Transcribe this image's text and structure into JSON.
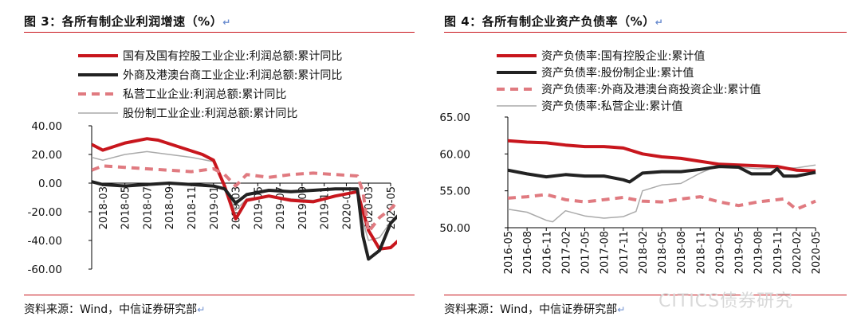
{
  "figures": [
    {
      "title": "图 3：各所有制企业利润增速（%）",
      "source": "资料来源：Wind，中信证券研究部",
      "return_mark": "↵"
    },
    {
      "title": "图 4：各所有制企业资产负债率（%）",
      "source": "资料来源：Wind，中信证券研究部",
      "return_mark": "↵"
    }
  ],
  "watermark": "CITICS债券研究",
  "colors": {
    "red": "#c8161d",
    "black": "#222222",
    "pink": "#e07a80",
    "gray": "#aaaaaa",
    "rule": "#c8161d"
  },
  "chart_data": [
    {
      "type": "line",
      "title": "",
      "xlabel": "",
      "ylabel": "",
      "ylim": [
        -60,
        40
      ],
      "yticks": [
        "40.00",
        "20.00",
        "0.00",
        "-20.00",
        "-40.00",
        "-60.00"
      ],
      "ytick_values": [
        40,
        20,
        0,
        -20,
        -40,
        -60
      ],
      "x_range": [
        0,
        27
      ],
      "xticks": [
        "2018-03",
        "2018-05",
        "2018-07",
        "2018-09",
        "2018-11",
        "2019-01",
        "2019-03",
        "2019-05",
        "2019-07",
        "2019-09",
        "2019-11",
        "2020-01",
        "2020-03",
        "2020-05"
      ],
      "xtick_values": [
        1,
        3,
        5,
        7,
        9,
        11,
        13,
        15,
        17,
        19,
        21,
        23,
        25,
        27
      ],
      "legend_position": "top",
      "series": [
        {
          "name": "国有及国有控股工业企业:利润总额:累计同比",
          "color": "#c8161d",
          "style": "solid-thick",
          "points": [
            [
              0,
              27
            ],
            [
              1,
              23
            ],
            [
              3,
              28
            ],
            [
              5,
              31
            ],
            [
              6,
              30
            ],
            [
              8,
              25
            ],
            [
              10,
              20
            ],
            [
              11,
              16
            ],
            [
              12,
              -2
            ],
            [
              13,
              -25
            ],
            [
              14,
              -12
            ],
            [
              16,
              -9
            ],
            [
              18,
              -12
            ],
            [
              20,
              -13
            ],
            [
              22,
              -9
            ],
            [
              24,
              -6
            ],
            [
              25,
              -33
            ],
            [
              26,
              -46
            ],
            [
              27,
              -45
            ],
            [
              28,
              -38
            ]
          ]
        },
        {
          "name": "外商及港澳台商工业企业:利润总额:累计同比",
          "color": "#222222",
          "style": "solid-thick",
          "points": [
            [
              0,
              1
            ],
            [
              1,
              -1
            ],
            [
              3,
              -2
            ],
            [
              5,
              -1
            ],
            [
              7,
              0
            ],
            [
              9,
              -1
            ],
            [
              11,
              -2
            ],
            [
              12,
              -4
            ],
            [
              13,
              -14
            ],
            [
              14,
              -8
            ],
            [
              16,
              -5
            ],
            [
              18,
              -6
            ],
            [
              20,
              -5
            ],
            [
              22,
              -4
            ],
            [
              24,
              -4
            ],
            [
              24.5,
              -37
            ],
            [
              25,
              -53
            ],
            [
              26,
              -47
            ],
            [
              27,
              -28
            ],
            [
              28,
              -20
            ]
          ]
        },
        {
          "name": "私营工业企业:利润总额:累计同比",
          "color": "#e07a80",
          "style": "dashed-thick",
          "points": [
            [
              0,
              9
            ],
            [
              1,
              12
            ],
            [
              3,
              11
            ],
            [
              5,
              10
            ],
            [
              7,
              9
            ],
            [
              9,
              8
            ],
            [
              11,
              10
            ],
            [
              12,
              6
            ],
            [
              13,
              -2
            ],
            [
              14,
              6
            ],
            [
              16,
              4
            ],
            [
              18,
              6
            ],
            [
              20,
              7
            ],
            [
              22,
              6
            ],
            [
              24,
              5
            ],
            [
              24.5,
              -6
            ],
            [
              25,
              -34
            ],
            [
              26,
              -24
            ],
            [
              27,
              -18
            ],
            [
              28,
              -10
            ]
          ]
        },
        {
          "name": "股份制工业企业:利润总额:累计同比",
          "color": "#aaaaaa",
          "style": "solid-thin",
          "points": [
            [
              0,
              18
            ],
            [
              1,
              16
            ],
            [
              3,
              20
            ],
            [
              5,
              22
            ],
            [
              7,
              20
            ],
            [
              9,
              18
            ],
            [
              11,
              15
            ],
            [
              12,
              -3
            ],
            [
              13,
              -19
            ],
            [
              14,
              -11
            ],
            [
              16,
              -9
            ],
            [
              18,
              -11
            ],
            [
              20,
              -12
            ],
            [
              22,
              -9
            ],
            [
              24,
              -5
            ],
            [
              24.5,
              -27
            ],
            [
              25,
              -40
            ],
            [
              26,
              -38
            ],
            [
              27,
              -27
            ],
            [
              28,
              -20
            ]
          ]
        }
      ]
    },
    {
      "type": "line",
      "title": "",
      "xlabel": "",
      "ylabel": "",
      "ylim": [
        50,
        65
      ],
      "yticks": [
        "65.00",
        "60.00",
        "55.00",
        "50.00"
      ],
      "ytick_values": [
        65,
        60,
        55,
        50
      ],
      "x_range": [
        0,
        48
      ],
      "xticks": [
        "2016-05",
        "2016-08",
        "2016-11",
        "2017-02",
        "2017-05",
        "2017-08",
        "2017-11",
        "2018-02",
        "2018-05",
        "2018-08",
        "2018-11",
        "2019-02",
        "2019-05",
        "2019-08",
        "2019-11",
        "2020-02",
        "2020-05"
      ],
      "xtick_values": [
        0,
        3,
        6,
        9,
        12,
        15,
        18,
        21,
        24,
        27,
        30,
        33,
        36,
        39,
        42,
        45,
        48
      ],
      "legend_position": "top",
      "series": [
        {
          "name": "资产负债率:国有控股企业:累计值",
          "color": "#c8161d",
          "style": "solid-thick",
          "points": [
            [
              0,
              61.8
            ],
            [
              3,
              61.6
            ],
            [
              6,
              61.5
            ],
            [
              9,
              61.2
            ],
            [
              12,
              61.0
            ],
            [
              15,
              61.0
            ],
            [
              18,
              60.8
            ],
            [
              21,
              60.0
            ],
            [
              24,
              59.6
            ],
            [
              27,
              59.4
            ],
            [
              30,
              59.0
            ],
            [
              33,
              58.6
            ],
            [
              36,
              58.5
            ],
            [
              39,
              58.4
            ],
            [
              42,
              58.3
            ],
            [
              45,
              57.8
            ],
            [
              48,
              57.7
            ]
          ]
        },
        {
          "name": "资产负债率:股份制企业:累计值",
          "color": "#222222",
          "style": "solid-thick",
          "points": [
            [
              0,
              57.8
            ],
            [
              3,
              57.3
            ],
            [
              6,
              56.9
            ],
            [
              9,
              57.2
            ],
            [
              12,
              57.0
            ],
            [
              15,
              57.0
            ],
            [
              18,
              56.5
            ],
            [
              19,
              56.2
            ],
            [
              21,
              57.4
            ],
            [
              24,
              57.6
            ],
            [
              27,
              57.6
            ],
            [
              30,
              57.9
            ],
            [
              33,
              58.3
            ],
            [
              36,
              58.2
            ],
            [
              38,
              57.3
            ],
            [
              41,
              57.3
            ],
            [
              42,
              58.0
            ],
            [
              43,
              57.0
            ],
            [
              45,
              57.0
            ],
            [
              48,
              57.5
            ]
          ]
        },
        {
          "name": "资产负债率:外商及港澳台商投资企业:累计值",
          "color": "#e07a80",
          "style": "dashed-thick",
          "points": [
            [
              0,
              54.0
            ],
            [
              3,
              54.2
            ],
            [
              6,
              54.5
            ],
            [
              9,
              53.8
            ],
            [
              12,
              53.5
            ],
            [
              15,
              53.8
            ],
            [
              18,
              54.1
            ],
            [
              21,
              53.6
            ],
            [
              24,
              53.5
            ],
            [
              27,
              53.9
            ],
            [
              30,
              54.2
            ],
            [
              33,
              53.5
            ],
            [
              36,
              53.0
            ],
            [
              39,
              53.5
            ],
            [
              42,
              53.8
            ],
            [
              43,
              53.9
            ],
            [
              45,
              52.5
            ],
            [
              48,
              53.6
            ]
          ]
        },
        {
          "name": "资产负债率:私营企业:累计值",
          "color": "#aaaaaa",
          "style": "solid-thin",
          "points": [
            [
              0,
              52.5
            ],
            [
              3,
              52.1
            ],
            [
              6,
              51.0
            ],
            [
              7,
              50.8
            ],
            [
              9,
              52.3
            ],
            [
              12,
              51.6
            ],
            [
              15,
              51.3
            ],
            [
              18,
              51.5
            ],
            [
              20,
              52.2
            ],
            [
              21,
              55.0
            ],
            [
              24,
              55.8
            ],
            [
              27,
              56.0
            ],
            [
              30,
              57.4
            ],
            [
              33,
              58.5
            ],
            [
              36,
              58.2
            ],
            [
              39,
              58.0
            ],
            [
              42,
              58.1
            ],
            [
              45,
              58.1
            ],
            [
              48,
              58.5
            ]
          ]
        }
      ]
    }
  ]
}
